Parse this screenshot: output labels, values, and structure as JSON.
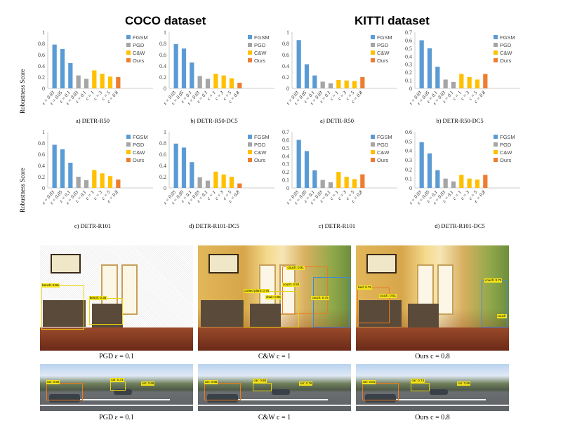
{
  "headings": {
    "coco": "COCO dataset",
    "kitti": "KITTI dataset"
  },
  "y_axis_label": "Robustness Score",
  "legend": [
    "FGSM",
    "PGD",
    "C&W",
    "Ours"
  ],
  "colors": {
    "FGSM": "#5b9bd5",
    "PGD": "#a5a5a5",
    "C&W": "#ffc000",
    "Ours": "#ed7d31"
  },
  "chart_data": [
    {
      "type": "bar",
      "caption": "a) DETR-R50",
      "categories": [
        "ε = 0.03",
        "ε = 0.05",
        "ε = 0.1",
        "ε = 0.03",
        "ε = 0.1",
        "c = 1",
        "c = 3",
        "c = 5",
        "c = 0.8"
      ],
      "groups": [
        "FGSM",
        "FGSM",
        "FGSM",
        "PGD",
        "PGD",
        "C&W",
        "C&W",
        "C&W",
        "Ours"
      ],
      "values": [
        0.78,
        0.7,
        0.45,
        0.23,
        0.17,
        0.32,
        0.26,
        0.21,
        0.2
      ],
      "ylim": [
        0,
        1
      ],
      "yticks": [
        "0",
        "0.2",
        "0.4",
        "0.6",
        "0.8",
        "1"
      ],
      "ylabel": "Robustness Score",
      "legend": "top-right"
    },
    {
      "type": "bar",
      "caption": "b) DETR-R50-DC5",
      "categories": [
        "ε = 0.03",
        "ε = 0.05",
        "ε = 0.1",
        "ε = 0.03",
        "ε = 0.1",
        "c = 1",
        "c = 3",
        "c = 5",
        "c = 0.8"
      ],
      "groups": [
        "FGSM",
        "FGSM",
        "FGSM",
        "PGD",
        "PGD",
        "C&W",
        "C&W",
        "C&W",
        "Ours"
      ],
      "values": [
        0.79,
        0.71,
        0.46,
        0.22,
        0.17,
        0.26,
        0.23,
        0.18,
        0.1
      ],
      "ylim": [
        0,
        1
      ],
      "yticks": [
        "0",
        "0.2",
        "0.4",
        "0.6",
        "0.8",
        "1"
      ],
      "ylabel": "",
      "legend": "top-right"
    },
    {
      "type": "bar",
      "caption": "a) DETR-R50",
      "categories": [
        "ε = 0.03",
        "ε = 0.05",
        "ε = 0.1",
        "ε = 0.03",
        "ε = 0.1",
        "c = 1",
        "c = 3",
        "c = 5",
        "c = 0.8"
      ],
      "groups": [
        "FGSM",
        "FGSM",
        "FGSM",
        "PGD",
        "PGD",
        "C&W",
        "C&W",
        "C&W",
        "Ours"
      ],
      "values": [
        0.86,
        0.43,
        0.23,
        0.12,
        0.09,
        0.15,
        0.14,
        0.13,
        0.2
      ],
      "ylim": [
        0,
        1
      ],
      "yticks": [
        "0",
        "0.2",
        "0.4",
        "0.6",
        "0.8",
        "1"
      ],
      "ylabel": "",
      "legend": "top-right"
    },
    {
      "type": "bar",
      "caption": "b) DETR-R50-DC5",
      "categories": [
        "ε = 0.03",
        "ε = 0.05",
        "ε = 0.1",
        "ε = 0.03",
        "ε = 0.1",
        "c = 1",
        "c = 3",
        "c = 5",
        "c = 0.8"
      ],
      "groups": [
        "FGSM",
        "FGSM",
        "FGSM",
        "PGD",
        "PGD",
        "C&W",
        "C&W",
        "C&W",
        "Ours"
      ],
      "values": [
        0.6,
        0.5,
        0.27,
        0.11,
        0.08,
        0.18,
        0.14,
        0.11,
        0.18
      ],
      "ylim": [
        0,
        0.7
      ],
      "yticks": [
        "0",
        "0.1",
        "0.2",
        "0.3",
        "0.4",
        "0.5",
        "0.6",
        "0.7"
      ],
      "ylabel": "",
      "legend": "top-right"
    },
    {
      "type": "bar",
      "caption": "c) DETR-R101",
      "categories": [
        "ε = 0.03",
        "ε = 0.05",
        "ε = 0.1",
        "ε = 0.03",
        "ε = 0.1",
        "c = 1",
        "c = 3",
        "c = 5",
        "c = 0.8"
      ],
      "groups": [
        "FGSM",
        "FGSM",
        "FGSM",
        "PGD",
        "PGD",
        "C&W",
        "C&W",
        "C&W",
        "Ours"
      ],
      "values": [
        0.77,
        0.69,
        0.45,
        0.2,
        0.14,
        0.32,
        0.26,
        0.21,
        0.15
      ],
      "ylim": [
        0,
        1
      ],
      "yticks": [
        "0",
        "0.2",
        "0.4",
        "0.6",
        "0.8",
        "1"
      ],
      "ylabel": "Robustness Score",
      "legend": "top-right"
    },
    {
      "type": "bar",
      "caption": "d) DETR-R101-DC5",
      "categories": [
        "ε = 0.03",
        "ε = 0.05",
        "ε = 0.1",
        "ε = 0.03",
        "ε = 0.1",
        "c = 1",
        "c = 3",
        "c = 5",
        "c = 0.8"
      ],
      "groups": [
        "FGSM",
        "FGSM",
        "FGSM",
        "PGD",
        "PGD",
        "C&W",
        "C&W",
        "C&W",
        "Ours"
      ],
      "values": [
        0.79,
        0.72,
        0.46,
        0.19,
        0.13,
        0.29,
        0.24,
        0.2,
        0.08
      ],
      "ylim": [
        0,
        1
      ],
      "yticks": [
        "0",
        "0.2",
        "0.4",
        "0.6",
        "0.8",
        "1"
      ],
      "ylabel": "",
      "legend": "top-right"
    },
    {
      "type": "bar",
      "caption": "c) DETR-R101",
      "categories": [
        "ε = 0.03",
        "ε = 0.05",
        "ε = 0.1",
        "ε = 0.03",
        "ε = 0.1",
        "c = 1",
        "c = 3",
        "c = 5",
        "c = 0.8"
      ],
      "groups": [
        "FGSM",
        "FGSM",
        "FGSM",
        "PGD",
        "PGD",
        "C&W",
        "C&W",
        "C&W",
        "Ours"
      ],
      "values": [
        0.6,
        0.46,
        0.22,
        0.1,
        0.07,
        0.2,
        0.14,
        0.11,
        0.17
      ],
      "ylim": [
        0,
        0.7
      ],
      "yticks": [
        "0",
        "0.1",
        "0.2",
        "0.3",
        "0.4",
        "0.5",
        "0.6",
        "0.7"
      ],
      "ylabel": "",
      "legend": "top-right"
    },
    {
      "type": "bar",
      "caption": "d) DETR-R101-DC5",
      "categories": [
        "ε = 0.03",
        "ε = 0.05",
        "ε = 0.1",
        "ε = 0.03",
        "ε = 0.1",
        "c = 1",
        "c = 3",
        "c = 5",
        "c = 0.8"
      ],
      "groups": [
        "FGSM",
        "FGSM",
        "FGSM",
        "PGD",
        "PGD",
        "C&W",
        "C&W",
        "C&W",
        "Ours"
      ],
      "values": [
        0.49,
        0.37,
        0.19,
        0.1,
        0.07,
        0.14,
        0.1,
        0.09,
        0.14
      ],
      "ylim": [
        0,
        0.6
      ],
      "yticks": [
        "0",
        "0.1",
        "0.2",
        "0.3",
        "0.4",
        "0.5",
        "0.6"
      ],
      "ylabel": "",
      "legend": "top-right"
    }
  ],
  "images": {
    "room": [
      {
        "caption": "PGD ε = 0.1",
        "labels": [
          "bench: 0.56",
          "bench: 0.35"
        ]
      },
      {
        "caption": "C&W c = 1",
        "labels": [
          "couch: 0.91",
          "potted plant: 0.75",
          "couch: 0.93",
          "chair: 0.66",
          "couch: 0.75"
        ]
      },
      {
        "caption": "Ours c = 0.8",
        "labels": [
          "bed: 0.78",
          "couch: 0.61",
          "couch: 0.70",
          "couch"
        ]
      }
    ],
    "street": [
      {
        "caption": "PGD ε = 0.1",
        "labels": [
          "car: 0.92",
          "car: 0.71",
          "car: 0.68"
        ]
      },
      {
        "caption": "C&W c = 1",
        "labels": [
          "car: 0.95",
          "car: 0.88",
          "car: 0.76"
        ]
      },
      {
        "caption": "Ours c = 0.8",
        "labels": [
          "car: 0.81",
          "car: 0.74",
          "car: 0.66"
        ]
      }
    ]
  }
}
